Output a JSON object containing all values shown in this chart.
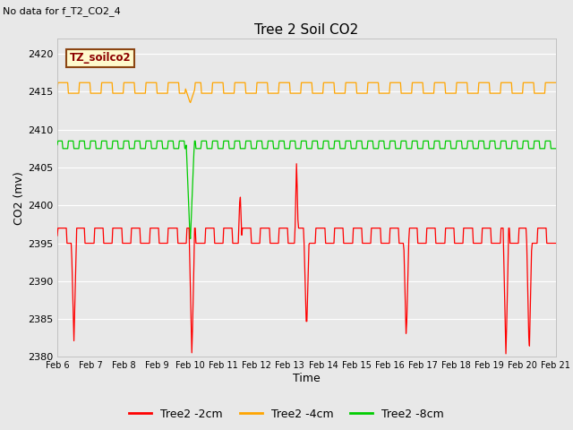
{
  "title": "Tree 2 Soil CO2",
  "subtitle": "No data for f_T2_CO2_4",
  "xlabel": "Time",
  "ylabel": "CO2 (mv)",
  "ylim": [
    2380,
    2422
  ],
  "yticks": [
    2380,
    2385,
    2390,
    2395,
    2400,
    2405,
    2410,
    2415,
    2420
  ],
  "xtick_labels": [
    "Feb 6",
    "Feb 7",
    "Feb 8",
    "Feb 9",
    "Feb 10",
    "Feb 11",
    "Feb 12",
    "Feb 13",
    "Feb 14",
    "Feb 15",
    "Feb 16",
    "Feb 17",
    "Feb 18",
    "Feb 19",
    "Feb 20",
    "Feb 21"
  ],
  "background_color": "#e8e8e8",
  "plot_bg_color": "#e8e8e8",
  "grid_color": "#ffffff",
  "legend_label_box": "TZ_soilco2",
  "legend_box_bg": "#fffacd",
  "legend_box_edge": "#8b4513",
  "series": [
    {
      "label": "Tree2 -2cm",
      "color": "#ff0000"
    },
    {
      "label": "Tree2 -4cm",
      "color": "#ffa500"
    },
    {
      "label": "Tree2 -8cm",
      "color": "#00cc00"
    }
  ]
}
